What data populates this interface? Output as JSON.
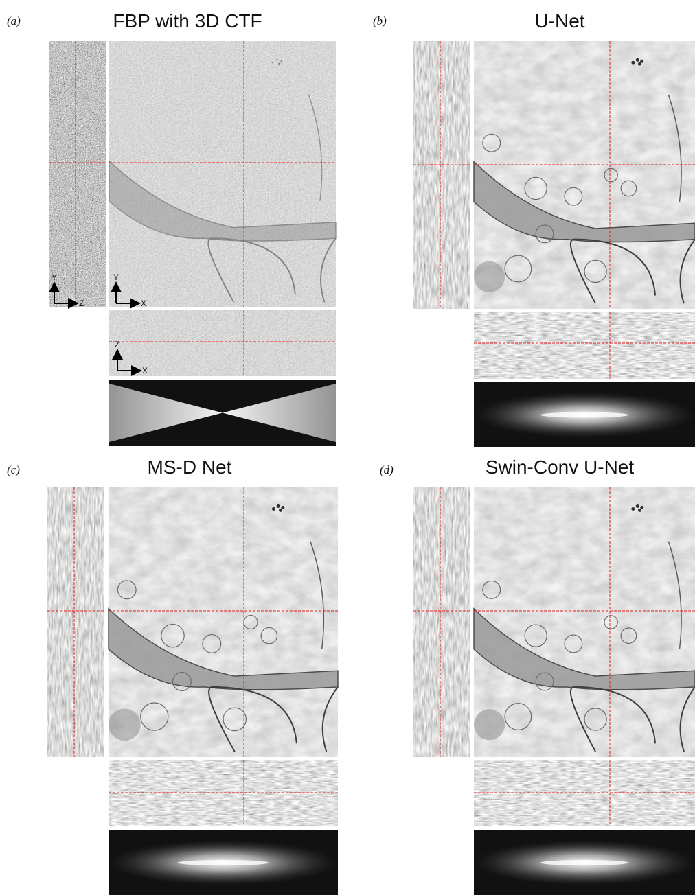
{
  "panels": [
    {
      "label": "(a)",
      "title": "FBP with 3D CTF",
      "axis_labels": [
        "Y",
        "Z",
        "Y",
        "X",
        "Z",
        "X"
      ]
    },
    {
      "label": "(b)",
      "title": "U-Net"
    },
    {
      "label": "(c)",
      "title": "MS-D Net"
    },
    {
      "label": "(d)",
      "title": "Swin-Conv U-Net"
    }
  ]
}
